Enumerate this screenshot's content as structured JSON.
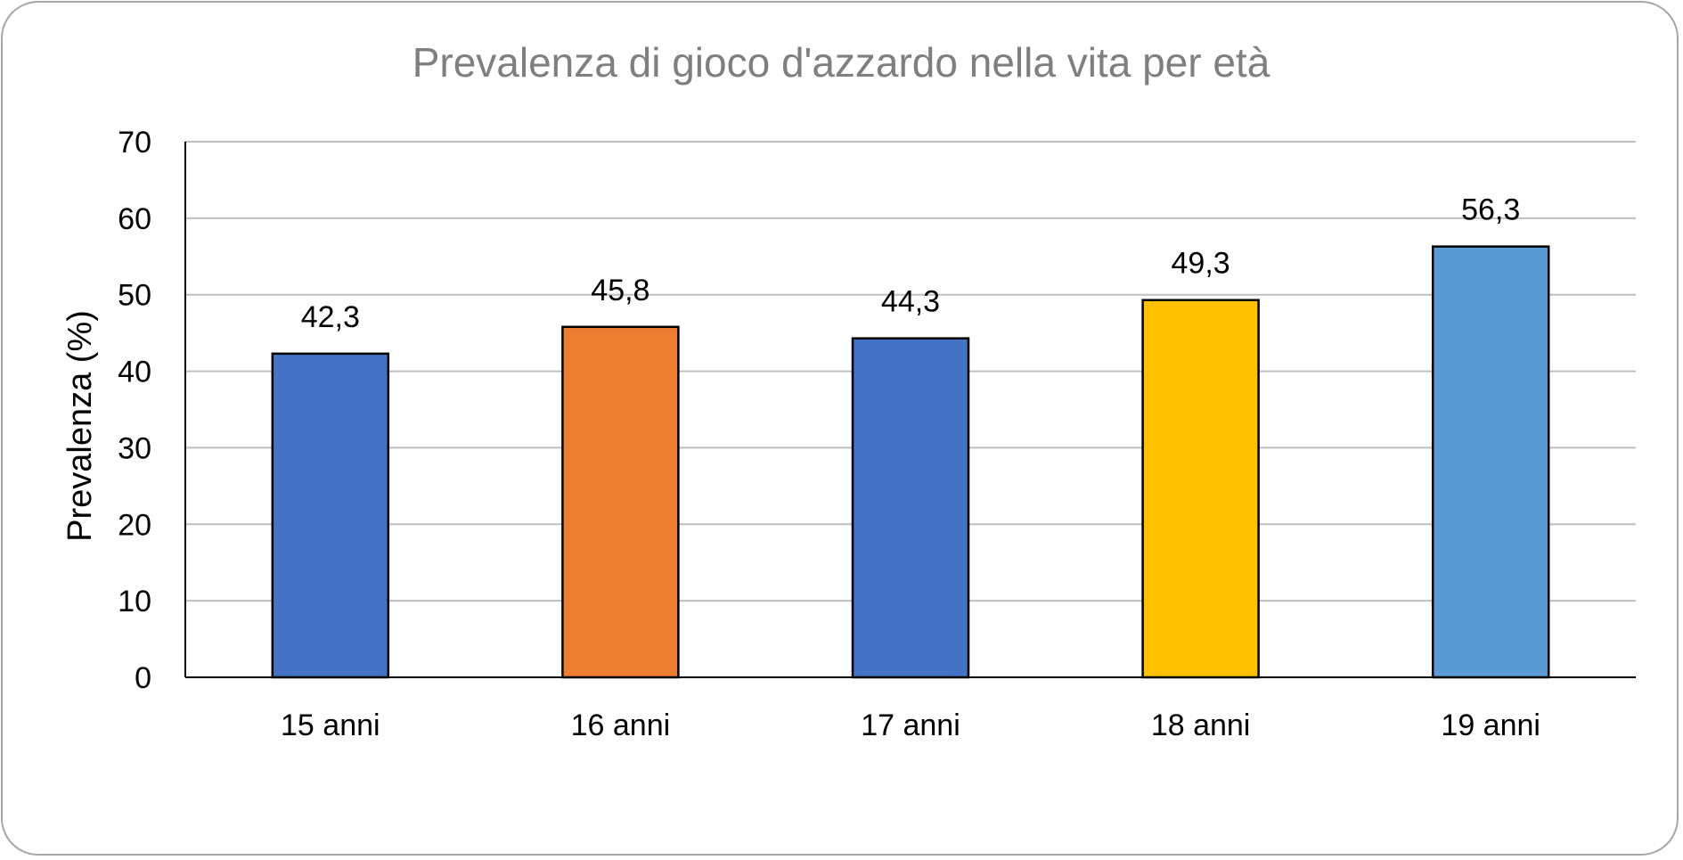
{
  "chart_data": {
    "type": "bar",
    "title": "Prevalenza di gioco d'azzardo nella vita per età",
    "xlabel": "",
    "ylabel": "Prevalenza (%)",
    "ylim": [
      0,
      70
    ],
    "yticks": [
      0,
      10,
      20,
      30,
      40,
      50,
      60,
      70
    ],
    "grid": true,
    "legend": "none",
    "categories": [
      "15 anni",
      "16 anni",
      "17 anni",
      "18 anni",
      "19 anni"
    ],
    "values": [
      42.3,
      45.8,
      44.3,
      49.3,
      56.3
    ],
    "data_labels": [
      "42,3",
      "45,8",
      "44,3",
      "49,3",
      "56,3"
    ],
    "bar_colors": [
      "#4472c4",
      "#ed7d31",
      "#4472c4",
      "#ffc000",
      "#5b9bd5"
    ],
    "bar_edge_color": "#000000",
    "grid_color": "#bfbfbf",
    "axis_color": "#000000"
  }
}
